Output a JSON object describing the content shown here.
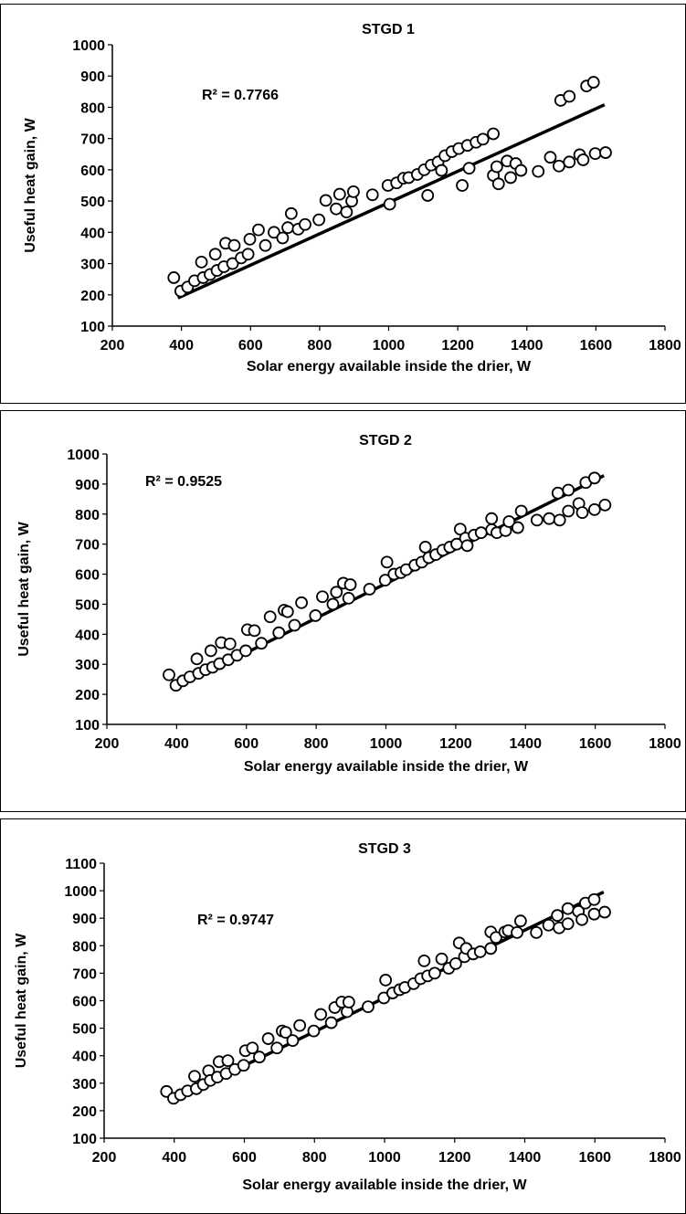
{
  "chart_data": [
    {
      "type": "scatter",
      "title": "STGD 1",
      "xlabel": "Solar energy available inside the drier, W",
      "ylabel": "Useful heat gain, W",
      "xlim": [
        200,
        1800
      ],
      "ylim": [
        100,
        1000
      ],
      "xticks": [
        200,
        400,
        600,
        800,
        1000,
        1200,
        1400,
        1600,
        1800
      ],
      "yticks": [
        100,
        200,
        300,
        400,
        500,
        600,
        700,
        800,
        900,
        1000
      ],
      "xtick_labels": [
        "200",
        "400",
        "600",
        "800",
        "1000",
        "1200",
        "1400",
        "1600",
        "1800"
      ],
      "ytick_labels": [
        "100",
        "200",
        "300",
        "400",
        "500",
        "600",
        "700",
        "800",
        "900",
        "1000"
      ],
      "r2_label": "R² = 0.7766",
      "trendline": {
        "x": [
          390,
          1625
        ],
        "y": [
          190,
          808
        ]
      },
      "points": [
        [
          378,
          255
        ],
        [
          398,
          212
        ],
        [
          418,
          225
        ],
        [
          438,
          245
        ],
        [
          458,
          305
        ],
        [
          463,
          255
        ],
        [
          483,
          265
        ],
        [
          498,
          330
        ],
        [
          503,
          278
        ],
        [
          523,
          290
        ],
        [
          528,
          365
        ],
        [
          548,
          300
        ],
        [
          553,
          358
        ],
        [
          573,
          318
        ],
        [
          593,
          330
        ],
        [
          598,
          378
        ],
        [
          623,
          408
        ],
        [
          643,
          358
        ],
        [
          668,
          400
        ],
        [
          693,
          382
        ],
        [
          708,
          415
        ],
        [
          718,
          460
        ],
        [
          738,
          410
        ],
        [
          758,
          425
        ],
        [
          798,
          440
        ],
        [
          818,
          502
        ],
        [
          848,
          475
        ],
        [
          858,
          522
        ],
        [
          878,
          465
        ],
        [
          893,
          500
        ],
        [
          898,
          530
        ],
        [
          953,
          520
        ],
        [
          998,
          550
        ],
        [
          1003,
          490
        ],
        [
          1023,
          558
        ],
        [
          1043,
          573
        ],
        [
          1058,
          575
        ],
        [
          1083,
          585
        ],
        [
          1103,
          600
        ],
        [
          1113,
          518
        ],
        [
          1123,
          615
        ],
        [
          1143,
          625
        ],
        [
          1153,
          598
        ],
        [
          1163,
          645
        ],
        [
          1183,
          658
        ],
        [
          1203,
          668
        ],
        [
          1213,
          550
        ],
        [
          1228,
          678
        ],
        [
          1233,
          605
        ],
        [
          1253,
          688
        ],
        [
          1273,
          698
        ],
        [
          1303,
          715
        ],
        [
          1303,
          582
        ],
        [
          1313,
          610
        ],
        [
          1318,
          555
        ],
        [
          1343,
          628
        ],
        [
          1353,
          575
        ],
        [
          1368,
          620
        ],
        [
          1383,
          598
        ],
        [
          1433,
          595
        ],
        [
          1468,
          640
        ],
        [
          1493,
          612
        ],
        [
          1498,
          822
        ],
        [
          1523,
          835
        ],
        [
          1523,
          625
        ],
        [
          1553,
          648
        ],
        [
          1563,
          632
        ],
        [
          1573,
          868
        ],
        [
          1593,
          880
        ],
        [
          1598,
          652
        ],
        [
          1628,
          655
        ]
      ]
    },
    {
      "type": "scatter",
      "title": "STGD 2",
      "xlabel": "Solar energy available inside the drier, W",
      "ylabel": "Useful heat gain, W",
      "xlim": [
        200,
        1800
      ],
      "ylim": [
        100,
        1000
      ],
      "xticks": [
        200,
        400,
        600,
        800,
        1000,
        1200,
        1400,
        1600,
        1800
      ],
      "yticks": [
        100,
        200,
        300,
        400,
        500,
        600,
        700,
        800,
        900,
        1000
      ],
      "xtick_labels": [
        "200",
        "400",
        "600",
        "800",
        "1000",
        "1200",
        "1400",
        "1600",
        "1800"
      ],
      "ytick_labels": [
        "100",
        "200",
        "300",
        "400",
        "500",
        "600",
        "700",
        "800",
        "900",
        "1000"
      ],
      "r2_label": "R² = 0.9525",
      "trendline": {
        "x": [
          390,
          1625
        ],
        "y": [
          218,
          928
        ]
      },
      "points": [
        [
          378,
          265
        ],
        [
          398,
          230
        ],
        [
          418,
          245
        ],
        [
          438,
          258
        ],
        [
          458,
          318
        ],
        [
          463,
          270
        ],
        [
          483,
          282
        ],
        [
          498,
          345
        ],
        [
          503,
          290
        ],
        [
          523,
          302
        ],
        [
          528,
          372
        ],
        [
          548,
          315
        ],
        [
          553,
          368
        ],
        [
          573,
          330
        ],
        [
          598,
          345
        ],
        [
          603,
          415
        ],
        [
          623,
          412
        ],
        [
          643,
          370
        ],
        [
          668,
          458
        ],
        [
          693,
          405
        ],
        [
          708,
          480
        ],
        [
          718,
          475
        ],
        [
          738,
          430
        ],
        [
          758,
          505
        ],
        [
          798,
          462
        ],
        [
          818,
          525
        ],
        [
          848,
          500
        ],
        [
          858,
          540
        ],
        [
          878,
          570
        ],
        [
          893,
          520
        ],
        [
          898,
          565
        ],
        [
          953,
          550
        ],
        [
          998,
          580
        ],
        [
          1003,
          640
        ],
        [
          1023,
          600
        ],
        [
          1043,
          605
        ],
        [
          1058,
          615
        ],
        [
          1083,
          630
        ],
        [
          1103,
          640
        ],
        [
          1113,
          690
        ],
        [
          1123,
          655
        ],
        [
          1143,
          665
        ],
        [
          1163,
          680
        ],
        [
          1183,
          690
        ],
        [
          1203,
          700
        ],
        [
          1213,
          750
        ],
        [
          1228,
          720
        ],
        [
          1233,
          695
        ],
        [
          1253,
          730
        ],
        [
          1273,
          738
        ],
        [
          1303,
          748
        ],
        [
          1303,
          785
        ],
        [
          1318,
          738
        ],
        [
          1343,
          745
        ],
        [
          1353,
          775
        ],
        [
          1378,
          755
        ],
        [
          1388,
          810
        ],
        [
          1433,
          780
        ],
        [
          1468,
          785
        ],
        [
          1493,
          870
        ],
        [
          1498,
          780
        ],
        [
          1523,
          880
        ],
        [
          1523,
          810
        ],
        [
          1553,
          835
        ],
        [
          1563,
          805
        ],
        [
          1573,
          905
        ],
        [
          1598,
          920
        ],
        [
          1598,
          815
        ],
        [
          1628,
          830
        ]
      ]
    },
    {
      "type": "scatter",
      "title": "STGD 3",
      "xlabel": "Solar energy available inside the drier, W",
      "ylabel": "Useful heat gain, W",
      "xlim": [
        200,
        1800
      ],
      "ylim": [
        100,
        1100
      ],
      "xticks": [
        200,
        400,
        600,
        800,
        1000,
        1200,
        1400,
        1600,
        1800
      ],
      "yticks": [
        100,
        200,
        300,
        400,
        500,
        600,
        700,
        800,
        900,
        1000,
        1100
      ],
      "xtick_labels": [
        "200",
        "400",
        "600",
        "800",
        "1000",
        "1200",
        "1400",
        "1600",
        "1800"
      ],
      "ytick_labels": [
        "100",
        "200",
        "300",
        "400",
        "500",
        "600",
        "700",
        "800",
        "900",
        "1000",
        "1100"
      ],
      "r2_label": "R² = 0.9747",
      "trendline": {
        "x": [
          390,
          1625
        ],
        "y": [
          235,
          995
        ]
      },
      "points": [
        [
          378,
          270
        ],
        [
          398,
          245
        ],
        [
          418,
          258
        ],
        [
          438,
          272
        ],
        [
          458,
          325
        ],
        [
          463,
          280
        ],
        [
          483,
          295
        ],
        [
          498,
          345
        ],
        [
          503,
          310
        ],
        [
          523,
          322
        ],
        [
          528,
          378
        ],
        [
          548,
          335
        ],
        [
          553,
          382
        ],
        [
          573,
          350
        ],
        [
          598,
          365
        ],
        [
          603,
          418
        ],
        [
          623,
          428
        ],
        [
          643,
          395
        ],
        [
          668,
          462
        ],
        [
          693,
          428
        ],
        [
          708,
          490
        ],
        [
          718,
          485
        ],
        [
          738,
          455
        ],
        [
          758,
          510
        ],
        [
          798,
          490
        ],
        [
          818,
          550
        ],
        [
          848,
          520
        ],
        [
          858,
          575
        ],
        [
          878,
          595
        ],
        [
          893,
          560
        ],
        [
          898,
          595
        ],
        [
          953,
          578
        ],
        [
          998,
          610
        ],
        [
          1003,
          675
        ],
        [
          1023,
          628
        ],
        [
          1043,
          640
        ],
        [
          1058,
          648
        ],
        [
          1083,
          662
        ],
        [
          1103,
          680
        ],
        [
          1113,
          745
        ],
        [
          1123,
          690
        ],
        [
          1143,
          700
        ],
        [
          1163,
          752
        ],
        [
          1183,
          718
        ],
        [
          1203,
          735
        ],
        [
          1213,
          810
        ],
        [
          1228,
          760
        ],
        [
          1233,
          790
        ],
        [
          1253,
          770
        ],
        [
          1273,
          778
        ],
        [
          1303,
          850
        ],
        [
          1303,
          790
        ],
        [
          1318,
          830
        ],
        [
          1343,
          850
        ],
        [
          1353,
          855
        ],
        [
          1378,
          848
        ],
        [
          1388,
          890
        ],
        [
          1433,
          848
        ],
        [
          1468,
          875
        ],
        [
          1493,
          910
        ],
        [
          1498,
          865
        ],
        [
          1523,
          935
        ],
        [
          1523,
          880
        ],
        [
          1553,
          925
        ],
        [
          1563,
          895
        ],
        [
          1573,
          955
        ],
        [
          1598,
          968
        ],
        [
          1598,
          915
        ],
        [
          1628,
          922
        ]
      ]
    }
  ]
}
